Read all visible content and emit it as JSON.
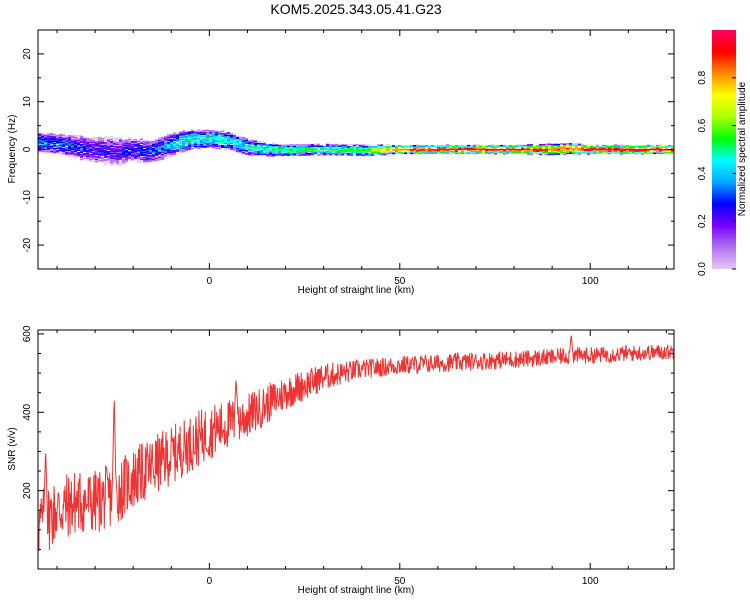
{
  "figure_title": "KOM5.2025.343.05.41.G23",
  "chart_data": [
    {
      "type": "heatmap",
      "title": "KOM5.2025.343.05.41.G23",
      "xlabel": "Height of straight line (km)",
      "ylabel": "Frequency (Hz)",
      "xlim": [
        -45,
        122
      ],
      "ylim": [
        -25,
        25
      ],
      "xticks": [
        0,
        50,
        100
      ],
      "yticks": [
        -20,
        -10,
        0,
        10,
        20
      ],
      "colorbar": {
        "label": "Normalized spectral amplitude",
        "range": [
          0.0,
          1.0
        ],
        "ticks": [
          0.0,
          0.2,
          0.4,
          0.6,
          0.8
        ],
        "colors": [
          "#e9c8f5",
          "#b070f0",
          "#7a00ff",
          "#0000ff",
          "#00aaff",
          "#00ffff",
          "#00ff00",
          "#aaff00",
          "#ffff00",
          "#ff8800",
          "#ff0000",
          "#ff0060"
        ]
      },
      "ridge": {
        "x": [
          -45,
          -40,
          -35,
          -30,
          -25,
          -20,
          -15,
          -10,
          -5,
          0,
          5,
          10,
          15,
          20,
          30,
          40,
          50,
          60,
          70,
          80,
          90,
          95,
          100,
          110,
          122
        ],
        "frequency": [
          1.5,
          1.2,
          0.5,
          0.0,
          -0.5,
          0.0,
          -0.5,
          1.0,
          2.0,
          2.2,
          1.8,
          0.5,
          0.0,
          -0.2,
          0.0,
          -0.2,
          0.0,
          0.0,
          0.0,
          0.0,
          0.0,
          0.2,
          0.0,
          0.0,
          0.0
        ],
        "amplitude": [
          0.35,
          0.35,
          0.3,
          0.25,
          0.25,
          0.3,
          0.3,
          0.4,
          0.45,
          0.45,
          0.45,
          0.45,
          0.5,
          0.5,
          0.55,
          0.55,
          0.85,
          0.9,
          0.9,
          0.9,
          0.85,
          0.8,
          0.95,
          0.95,
          0.9
        ],
        "spread_hz": [
          2.2,
          2.2,
          2.5,
          2.8,
          3.0,
          2.5,
          2.5,
          2.5,
          2.2,
          2.0,
          2.0,
          1.8,
          1.5,
          1.3,
          1.2,
          1.2,
          1.0,
          1.0,
          1.0,
          1.0,
          1.2,
          1.2,
          1.0,
          1.0,
          1.0
        ]
      }
    },
    {
      "type": "line",
      "xlabel": "Height of straight line (km)",
      "ylabel": "SNR (v/v)",
      "xlim": [
        -45,
        122
      ],
      "ylim": [
        0,
        610
      ],
      "xticks": [
        0,
        50,
        100
      ],
      "yticks": [
        200,
        400,
        600
      ],
      "color": "#ee3333",
      "trend": {
        "x": [
          -45,
          -40,
          -35,
          -30,
          -25,
          -20,
          -15,
          -10,
          -5,
          0,
          5,
          10,
          15,
          20,
          25,
          30,
          40,
          50,
          60,
          70,
          80,
          90,
          95,
          100,
          110,
          122
        ],
        "snr": [
          110,
          150,
          170,
          170,
          190,
          230,
          260,
          290,
          320,
          350,
          370,
          390,
          420,
          450,
          470,
          490,
          510,
          520,
          525,
          530,
          535,
          540,
          545,
          545,
          550,
          555
        ]
      },
      "noise_amplitude": {
        "x": [
          -45,
          -20,
          0,
          20,
          40,
          122
        ],
        "amp": [
          90,
          80,
          70,
          45,
          25,
          20
        ]
      },
      "spikes": [
        {
          "x": -43,
          "snr": 310
        },
        {
          "x": -25,
          "snr": 450
        },
        {
          "x": 7,
          "snr": 490
        },
        {
          "x": 95,
          "snr": 600
        }
      ]
    }
  ]
}
